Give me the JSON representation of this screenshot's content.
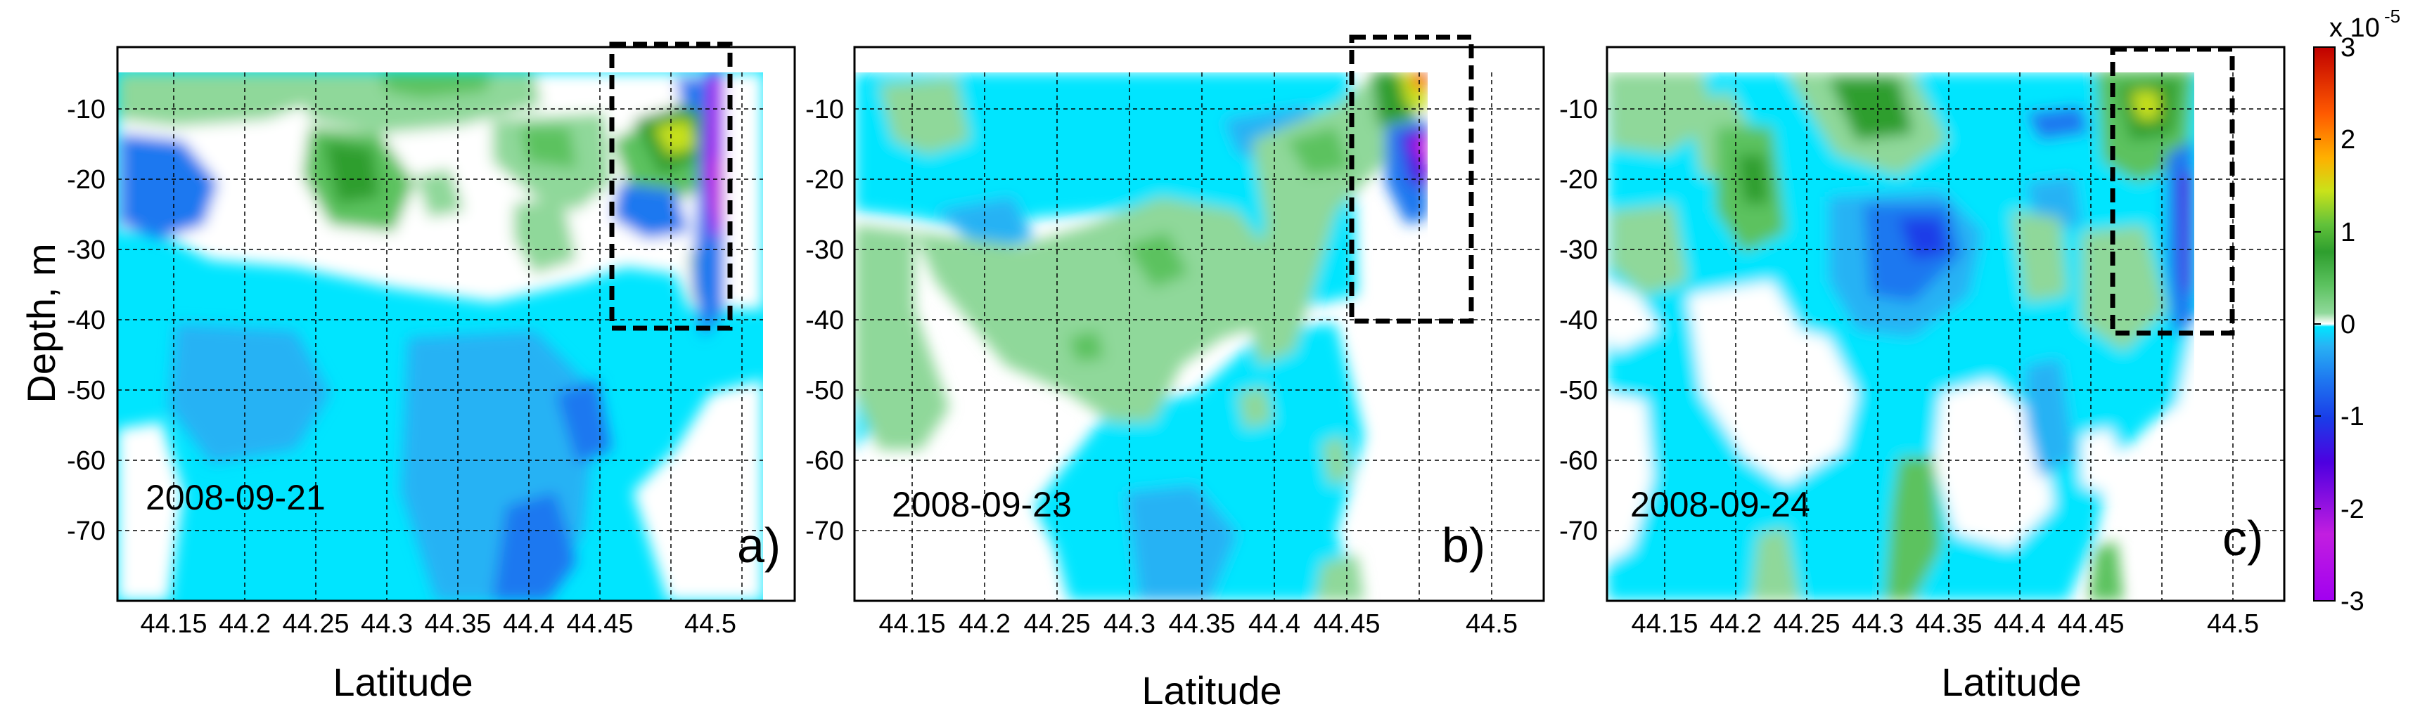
{
  "chart_data": {
    "type": "heatmap",
    "title": "",
    "xlabel": "Latitude",
    "ylabel": "Depth, m",
    "x_ticks": [
      "44.15",
      "44.2",
      "44.25",
      "44.3",
      "44.35",
      "44.4",
      "44.45",
      "44.5"
    ],
    "y_ticks": [
      "-10",
      "-20",
      "-30",
      "-40",
      "-50",
      "-60",
      "-70"
    ],
    "xlim": [
      44.1,
      44.55
    ],
    "ylim": [
      -80,
      -3
    ],
    "grid": true,
    "colorbar": {
      "exponent_label": "x 10",
      "exponent": "-5",
      "range": [
        -3,
        3
      ],
      "ticks": [
        "3",
        "2",
        "1",
        "0",
        "-1",
        "-2",
        "-3"
      ],
      "colors": [
        "#a100f0",
        "#c21ee0",
        "#4d00e0",
        "#1a3de8",
        "#1e78f0",
        "#28b2f4",
        "#00e5ff",
        "#ffffff",
        "#8fd89a",
        "#5cc25f",
        "#2e9e2e",
        "#62c23a",
        "#c9e21a",
        "#ffb000",
        "#ff5a00",
        "#c00000"
      ]
    },
    "panels": [
      {
        "date": "2008-09-21",
        "label": "a)",
        "highlight_box": {
          "lat": [
            44.427,
            44.49
          ],
          "depth": [
            -1,
            -41
          ]
        }
      },
      {
        "date": "2008-09-23",
        "label": "b)",
        "highlight_box": {
          "lat": [
            44.43,
            44.51
          ],
          "depth": [
            -1,
            -40
          ]
        }
      },
      {
        "date": "2008-09-24",
        "label": "c)",
        "highlight_box": {
          "lat": [
            44.43,
            44.51
          ],
          "depth": [
            -1,
            -42
          ]
        }
      }
    ]
  }
}
